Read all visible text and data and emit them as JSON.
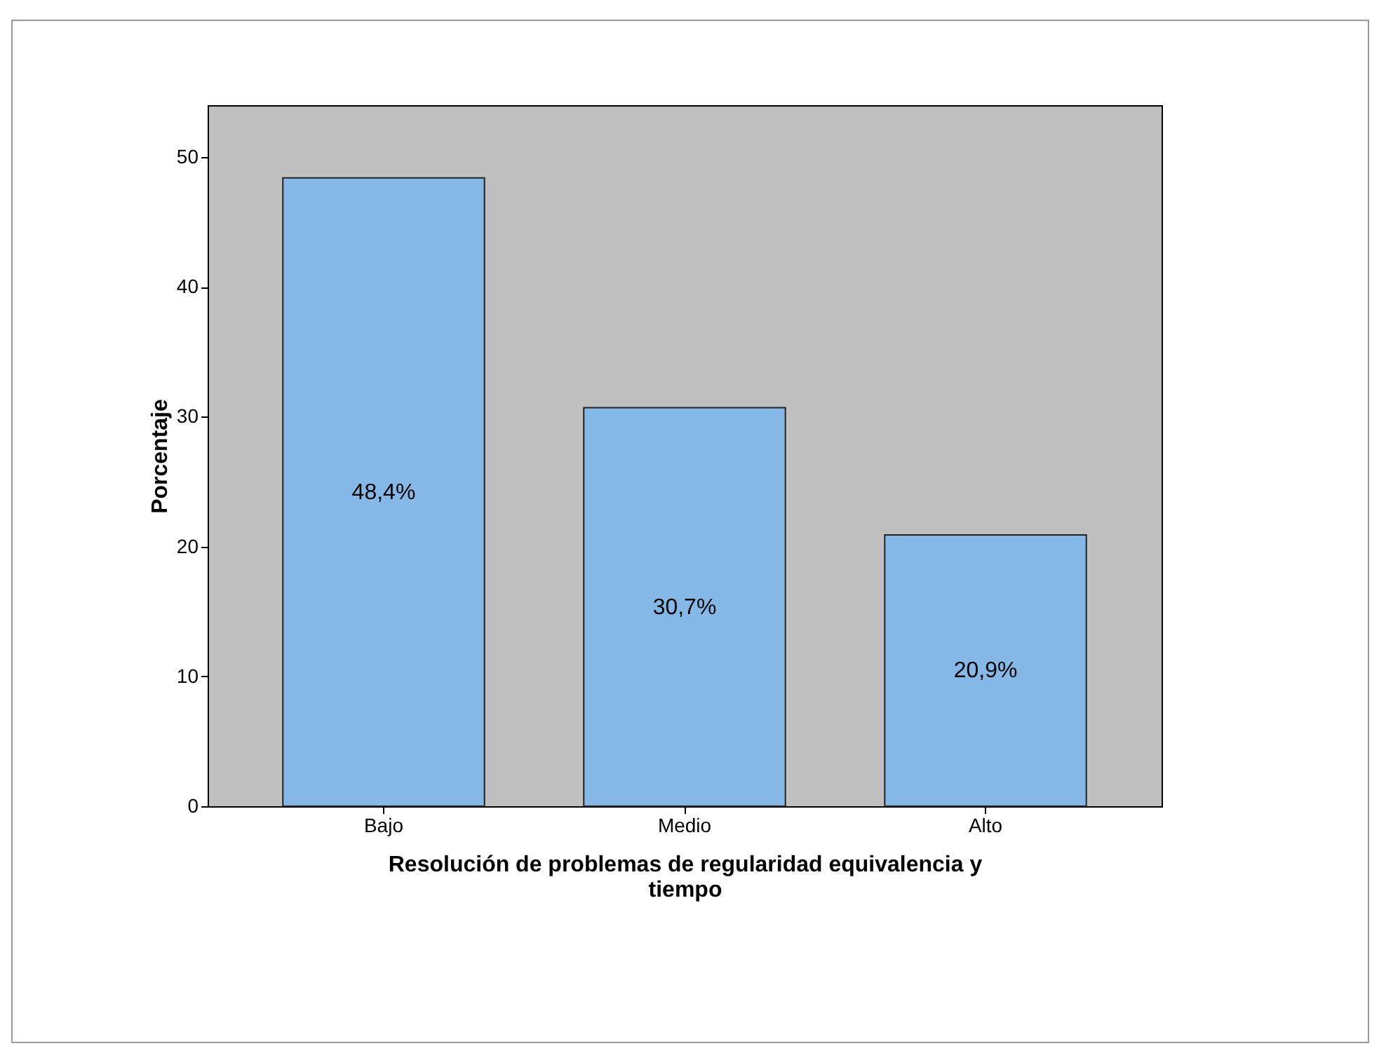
{
  "chart_data": {
    "type": "bar",
    "categories": [
      "Bajo",
      "Medio",
      "Alto"
    ],
    "values": [
      48.4,
      30.7,
      20.9
    ],
    "value_labels": [
      "48,4%",
      "30,7%",
      "20,9%"
    ],
    "color": "#85b8e6",
    "xlabel": "Resolución de problemas de regularidad equivalencia y tiempo",
    "ylabel": "Porcentaje",
    "ylim": [
      0,
      54
    ],
    "yticks": [
      0,
      10,
      20,
      30,
      40,
      50
    ],
    "grid": false
  }
}
